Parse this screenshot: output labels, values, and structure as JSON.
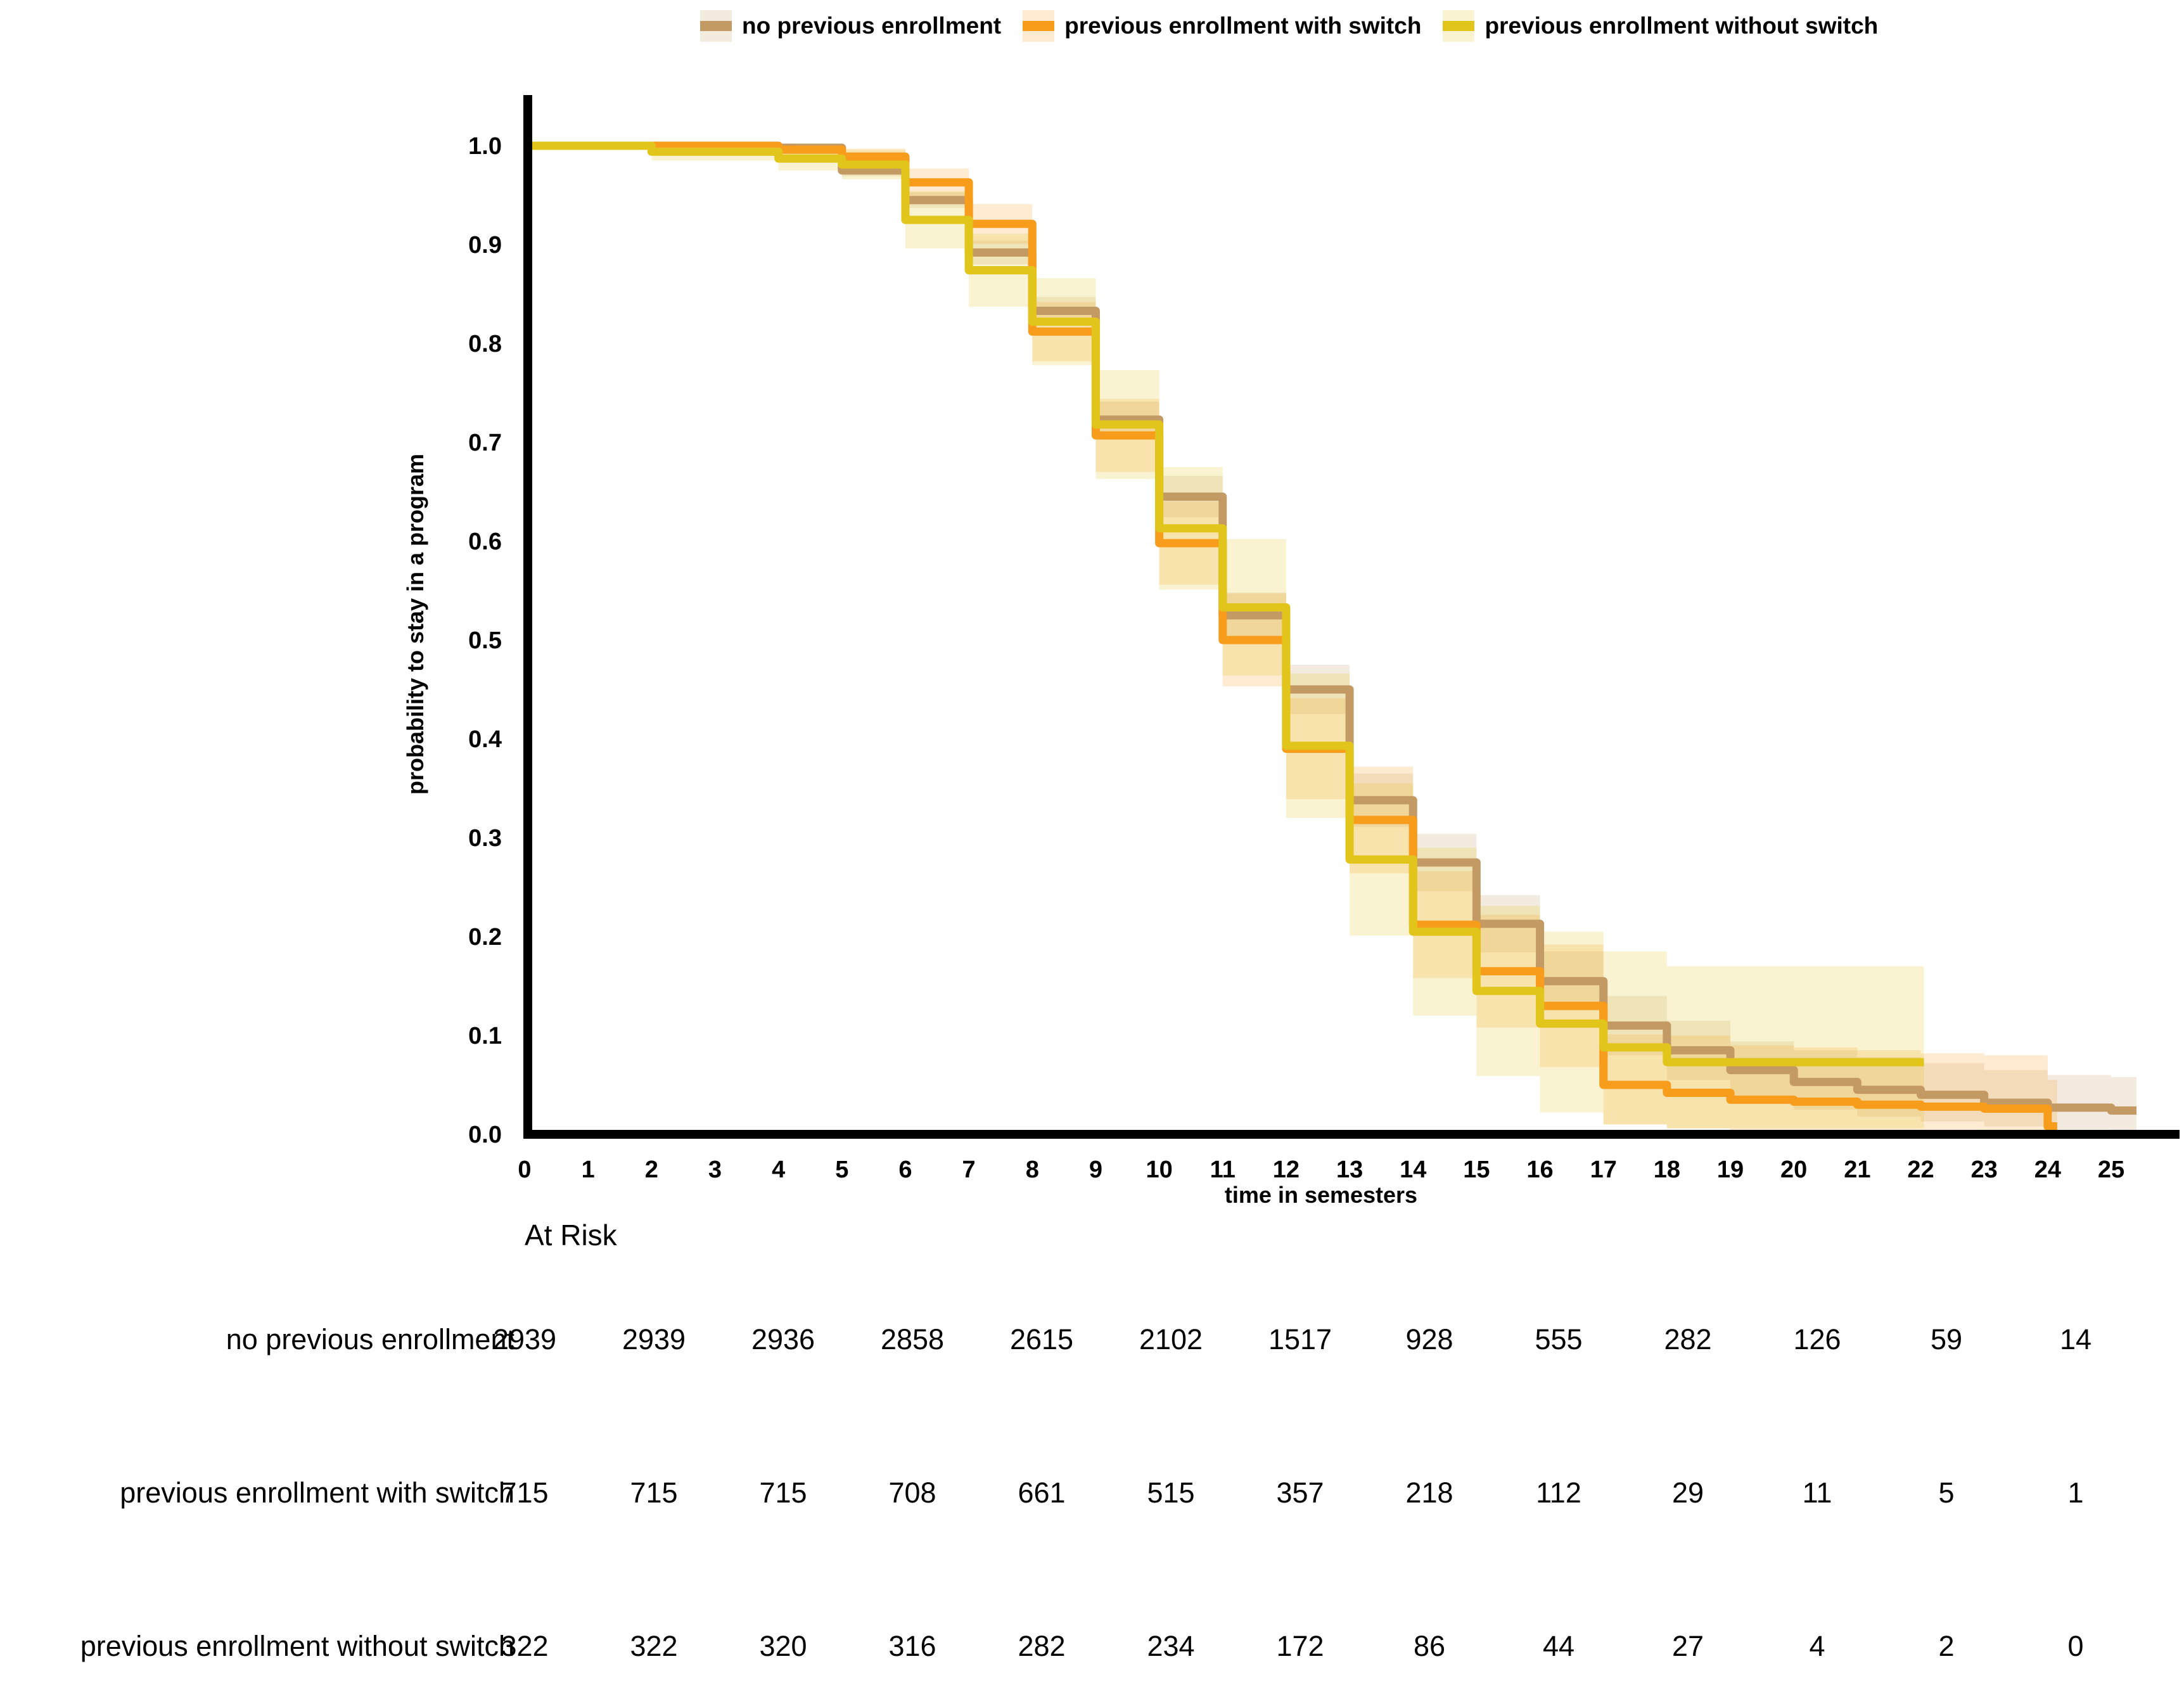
{
  "legend": {
    "items": [
      {
        "label": "no previous enrollment",
        "color": "#c49a64",
        "band_color": "rgba(196,154,100,0.20)"
      },
      {
        "label": "previous enrollment with switch",
        "color": "#f89c1c",
        "band_color": "rgba(248,156,28,0.20)"
      },
      {
        "label": "previous enrollment without switch",
        "color": "#e2c51b",
        "band_color": "rgba(226,197,27,0.20)"
      }
    ]
  },
  "chart_data": {
    "type": "line",
    "subtype": "kaplan-meier-step",
    "title": "",
    "xlabel": "time in semesters",
    "ylabel": "probability to stay in a program",
    "xlim": [
      0,
      25
    ],
    "ylim": [
      0.0,
      1.0
    ],
    "grid": false,
    "legend_position": "top",
    "x_ticks": [
      "0",
      "1",
      "2",
      "3",
      "4",
      "5",
      "6",
      "7",
      "8",
      "9",
      "10",
      "11",
      "12",
      "13",
      "14",
      "15",
      "16",
      "17",
      "18",
      "19",
      "20",
      "21",
      "22",
      "23",
      "24",
      "25"
    ],
    "y_ticks": [
      "0.0",
      "0.1",
      "0.2",
      "0.3",
      "0.4",
      "0.5",
      "0.6",
      "0.7",
      "0.8",
      "0.9",
      "1.0"
    ],
    "series": [
      {
        "name": "no previous enrollment",
        "color": "#c49a64",
        "band_color": "rgba(196,154,100,0.20)",
        "end_x": 25.4,
        "steps": [
          [
            0,
            1.0,
            1.0,
            1.0
          ],
          [
            2,
            0.999,
            0.997,
            1.0
          ],
          [
            4,
            0.998,
            0.995,
            1.0
          ],
          [
            5,
            0.975,
            0.969,
            0.981
          ],
          [
            6,
            0.945,
            0.937,
            0.953
          ],
          [
            7,
            0.892,
            0.88,
            0.904
          ],
          [
            8,
            0.833,
            0.819,
            0.847
          ],
          [
            9,
            0.723,
            0.705,
            0.741
          ],
          [
            10,
            0.645,
            0.624,
            0.666
          ],
          [
            11,
            0.525,
            0.502,
            0.548
          ],
          [
            12,
            0.45,
            0.425,
            0.475
          ],
          [
            13,
            0.338,
            0.311,
            0.365
          ],
          [
            14,
            0.275,
            0.246,
            0.304
          ],
          [
            15,
            0.213,
            0.184,
            0.242
          ],
          [
            16,
            0.155,
            0.125,
            0.185
          ],
          [
            17,
            0.11,
            0.08,
            0.14
          ],
          [
            18,
            0.085,
            0.055,
            0.115
          ],
          [
            19,
            0.065,
            0.036,
            0.094
          ],
          [
            20,
            0.053,
            0.025,
            0.085
          ],
          [
            21,
            0.045,
            0.018,
            0.078
          ],
          [
            22,
            0.04,
            0.013,
            0.072
          ],
          [
            23,
            0.032,
            0.008,
            0.065
          ],
          [
            24,
            0.027,
            0.005,
            0.06
          ],
          [
            25,
            0.024,
            0.004,
            0.058
          ]
        ]
      },
      {
        "name": "previous enrollment with switch",
        "color": "#f89c1c",
        "band_color": "rgba(248,156,28,0.20)",
        "end_x": 24.15,
        "steps": [
          [
            0,
            1.0,
            1.0,
            1.0
          ],
          [
            4,
            0.996,
            0.991,
            1.0
          ],
          [
            5,
            0.989,
            0.981,
            0.997
          ],
          [
            6,
            0.963,
            0.949,
            0.977
          ],
          [
            7,
            0.921,
            0.901,
            0.941
          ],
          [
            8,
            0.812,
            0.782,
            0.842
          ],
          [
            9,
            0.707,
            0.67,
            0.744
          ],
          [
            10,
            0.598,
            0.556,
            0.64
          ],
          [
            11,
            0.5,
            0.453,
            0.547
          ],
          [
            12,
            0.39,
            0.339,
            0.441
          ],
          [
            13,
            0.318,
            0.264,
            0.372
          ],
          [
            14,
            0.212,
            0.158,
            0.266
          ],
          [
            15,
            0.165,
            0.108,
            0.222
          ],
          [
            16,
            0.13,
            0.068,
            0.192
          ],
          [
            17,
            0.05,
            0.01,
            0.101
          ],
          [
            18,
            0.042,
            0.006,
            0.1
          ],
          [
            19,
            0.035,
            0.004,
            0.09
          ],
          [
            20,
            0.033,
            0.004,
            0.088
          ],
          [
            21,
            0.03,
            0.003,
            0.085
          ],
          [
            22,
            0.028,
            0.003,
            0.082
          ],
          [
            23,
            0.026,
            0.002,
            0.08
          ],
          [
            24,
            0.008,
            0.001,
            0.055
          ]
        ]
      },
      {
        "name": "previous enrollment without switch",
        "color": "#e2c51b",
        "band_color": "rgba(226,197,27,0.20)",
        "end_x": 22.05,
        "steps": [
          [
            0,
            1.0,
            1.0,
            1.0
          ],
          [
            2,
            0.994,
            0.985,
            1.0
          ],
          [
            4,
            0.987,
            0.975,
            0.999
          ],
          [
            5,
            0.981,
            0.966,
            0.996
          ],
          [
            6,
            0.925,
            0.896,
            0.954
          ],
          [
            7,
            0.874,
            0.837,
            0.911
          ],
          [
            8,
            0.822,
            0.778,
            0.866
          ],
          [
            9,
            0.718,
            0.663,
            0.773
          ],
          [
            10,
            0.613,
            0.551,
            0.675
          ],
          [
            11,
            0.533,
            0.464,
            0.602
          ],
          [
            12,
            0.393,
            0.32,
            0.466
          ],
          [
            13,
            0.278,
            0.201,
            0.355
          ],
          [
            14,
            0.205,
            0.12,
            0.29
          ],
          [
            15,
            0.145,
            0.059,
            0.231
          ],
          [
            16,
            0.112,
            0.022,
            0.205
          ],
          [
            17,
            0.088,
            0.01,
            0.185
          ],
          [
            18,
            0.073,
            0.006,
            0.17
          ]
        ]
      }
    ]
  },
  "at_risk": {
    "title": "At Risk",
    "times": [
      0,
      2,
      4,
      6,
      8,
      10,
      12,
      14,
      16,
      18,
      20,
      22,
      24
    ],
    "rows": [
      {
        "label": "no previous enrollment",
        "values": [
          "2939",
          "2939",
          "2936",
          "2858",
          "2615",
          "2102",
          "1517",
          "928",
          "555",
          "282",
          "126",
          "59",
          "14"
        ]
      },
      {
        "label": "previous enrollment with switch",
        "values": [
          "715",
          "715",
          "715",
          "708",
          "661",
          "515",
          "357",
          "218",
          "112",
          "29",
          "11",
          "5",
          "1"
        ]
      },
      {
        "label": "previous enrollment without switch",
        "values": [
          "322",
          "322",
          "320",
          "316",
          "282",
          "234",
          "172",
          "86",
          "44",
          "27",
          "4",
          "2",
          "0"
        ]
      }
    ]
  }
}
